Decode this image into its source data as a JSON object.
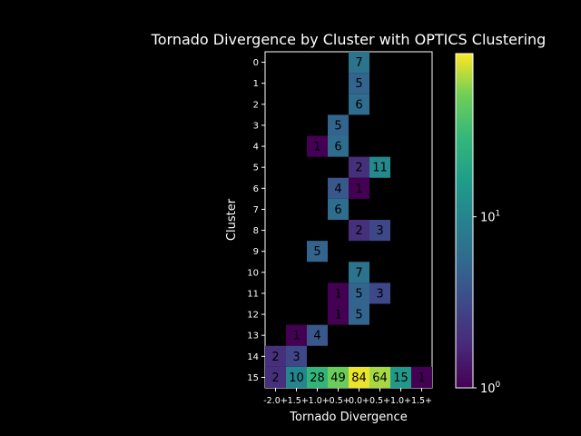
{
  "chart_data": {
    "type": "heatmap",
    "title": "Tornado Divergence by Cluster with OPTICS Clustering",
    "xlabel": "Tornado Divergence",
    "ylabel": "Cluster",
    "x_categories": [
      "-2.0+",
      "-1.5+",
      "-1.0+",
      "-0.5+",
      "0.0+",
      "0.5+",
      "1.0+",
      "1.5+"
    ],
    "y_categories": [
      "0",
      "1",
      "2",
      "3",
      "4",
      "5",
      "6",
      "7",
      "8",
      "9",
      "10",
      "11",
      "12",
      "13",
      "14",
      "15"
    ],
    "colorscale": "viridis",
    "color_scale_type": "log",
    "colorbar_range": [
      1,
      90
    ],
    "colorbar_ticks": [
      {
        "value": 1,
        "base": "10",
        "exp": "0"
      },
      {
        "value": 10,
        "base": "10",
        "exp": "1"
      }
    ],
    "cells": [
      {
        "row": 0,
        "col": 4,
        "value": 7
      },
      {
        "row": 1,
        "col": 4,
        "value": 5
      },
      {
        "row": 2,
        "col": 4,
        "value": 6
      },
      {
        "row": 3,
        "col": 3,
        "value": 5
      },
      {
        "row": 4,
        "col": 2,
        "value": 1
      },
      {
        "row": 4,
        "col": 3,
        "value": 6
      },
      {
        "row": 5,
        "col": 4,
        "value": 2
      },
      {
        "row": 5,
        "col": 5,
        "value": 11
      },
      {
        "row": 6,
        "col": 3,
        "value": 4
      },
      {
        "row": 6,
        "col": 4,
        "value": 1
      },
      {
        "row": 7,
        "col": 3,
        "value": 6
      },
      {
        "row": 8,
        "col": 4,
        "value": 2
      },
      {
        "row": 8,
        "col": 5,
        "value": 3
      },
      {
        "row": 9,
        "col": 2,
        "value": 5
      },
      {
        "row": 10,
        "col": 4,
        "value": 7
      },
      {
        "row": 11,
        "col": 3,
        "value": 1
      },
      {
        "row": 11,
        "col": 4,
        "value": 5
      },
      {
        "row": 11,
        "col": 5,
        "value": 3
      },
      {
        "row": 12,
        "col": 3,
        "value": 1
      },
      {
        "row": 12,
        "col": 4,
        "value": 5
      },
      {
        "row": 13,
        "col": 1,
        "value": 1
      },
      {
        "row": 13,
        "col": 2,
        "value": 4
      },
      {
        "row": 14,
        "col": 0,
        "value": 2
      },
      {
        "row": 14,
        "col": 1,
        "value": 3
      },
      {
        "row": 15,
        "col": 0,
        "value": 2
      },
      {
        "row": 15,
        "col": 1,
        "value": 10
      },
      {
        "row": 15,
        "col": 2,
        "value": 28
      },
      {
        "row": 15,
        "col": 3,
        "value": 49
      },
      {
        "row": 15,
        "col": 4,
        "value": 84
      },
      {
        "row": 15,
        "col": 5,
        "value": 64
      },
      {
        "row": 15,
        "col": 6,
        "value": 15
      },
      {
        "row": 15,
        "col": 7,
        "value": 1
      }
    ]
  }
}
